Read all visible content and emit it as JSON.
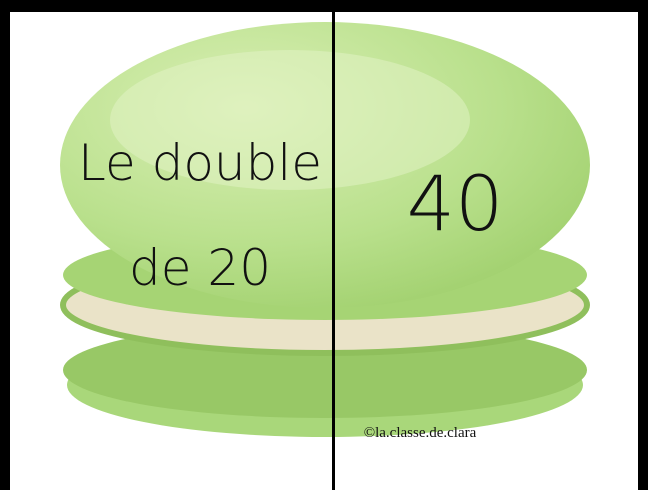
{
  "card": {
    "question": [
      "Le double",
      "de 20"
    ],
    "answer": "40",
    "credit": "©la.classe.de.clara"
  }
}
